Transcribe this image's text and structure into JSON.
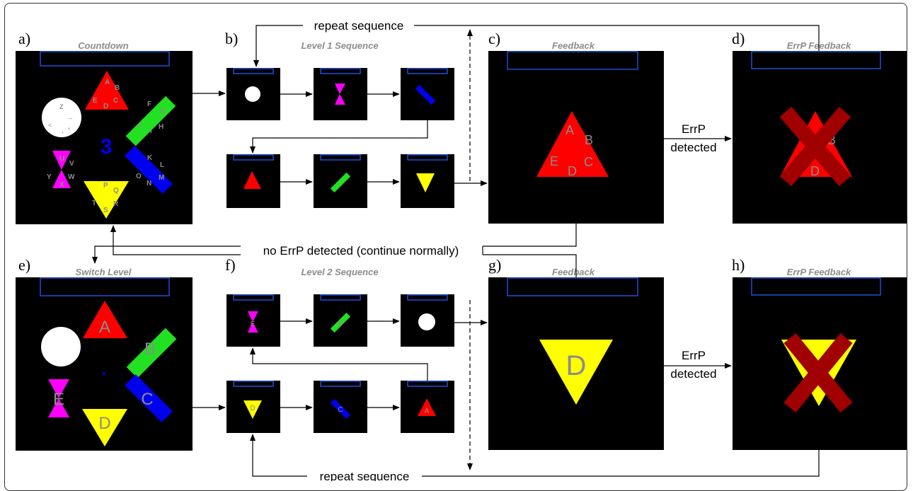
{
  "panels": {
    "a": {
      "letter": "a)",
      "title": "Countdown",
      "count": "3"
    },
    "b": {
      "letter": "b)",
      "title": "Level 1 Sequence"
    },
    "c": {
      "letter": "c)",
      "title": "Feedback"
    },
    "d": {
      "letter": "d)",
      "title": "ErrP Feedback"
    },
    "e": {
      "letter": "e)",
      "title": "Switch Level"
    },
    "f": {
      "letter": "f)",
      "title": "Level 2 Sequence"
    },
    "g": {
      "letter": "g)",
      "title": "Feedback"
    },
    "h": {
      "letter": "h)",
      "title": "ErrP Feedback"
    }
  },
  "connectors": {
    "repeat_top": "repeat sequence",
    "repeat_bottom": "repeat sequence",
    "no_errp": "no ErrP detected (continue normally)",
    "errp_top": [
      "ErrP",
      "detected"
    ],
    "errp_bottom": [
      "ErrP",
      "detected"
    ]
  },
  "shape_labels": {
    "triangle_up": [
      "A",
      "B",
      "C",
      "D",
      "E"
    ],
    "bar_green": [
      "F",
      "G",
      "H",
      "I",
      "J"
    ],
    "bar_blue": [
      "K",
      "L",
      "M",
      "N",
      "O"
    ],
    "triangle_down": [
      "P",
      "Q",
      "R",
      "S",
      "T"
    ],
    "hourglass": [
      "U",
      "V",
      "W",
      "X",
      "Y"
    ],
    "circle": [
      "Z",
      "_",
      ".",
      ",",
      "<"
    ]
  },
  "level2_labels": {
    "triangle_up": "A",
    "bar_green": "B",
    "bar_blue": "C",
    "triangle_down": "D",
    "hourglass": "E"
  },
  "feedback_letters": {
    "g": "D"
  },
  "colors": {
    "red": "#ff0000",
    "green": "#22e022",
    "blue": "#0000ee",
    "yellow": "#ffff00",
    "magenta": "#ff00ff",
    "white": "#ffffff",
    "label_gray": "#8c8c8c",
    "screen": "#000000",
    "frame_blue": "#1f4fd8",
    "cross": "#a00000"
  }
}
